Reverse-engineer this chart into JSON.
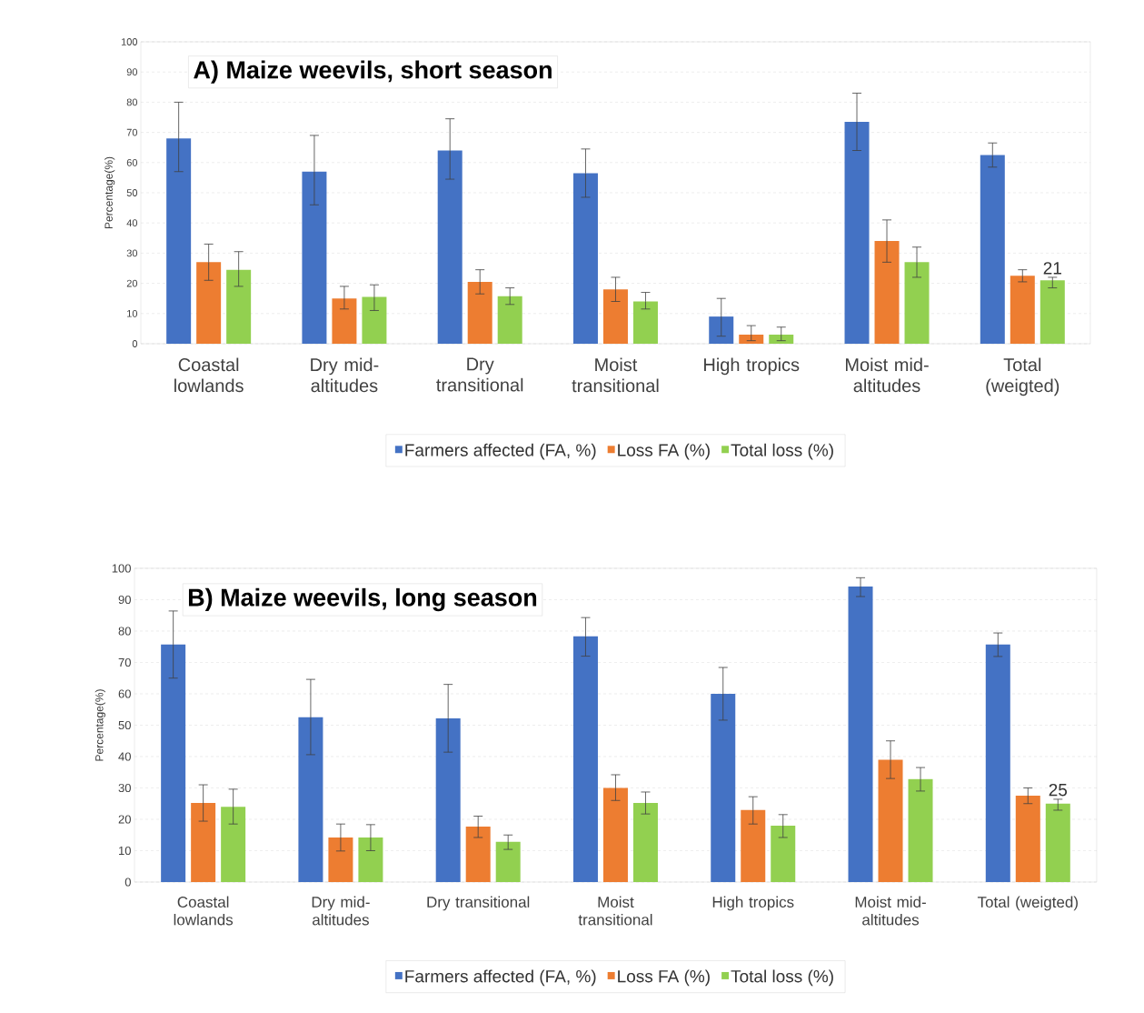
{
  "chart_data": [
    {
      "type": "bar",
      "title": "A) Maize weevils,  short season",
      "ylabel": "Percentage(%)",
      "categories": [
        "Coastal lowlands",
        "Dry mid-altitudes",
        "Dry transitional",
        "Moist transitional",
        "High tropics",
        "Moist mid-altitudes",
        "Total (weigted)"
      ],
      "series": [
        {
          "name": "Farmers affected (FA, %)",
          "color": "#4472c4",
          "values": [
            68,
            57,
            64,
            56.5,
            9,
            73.5,
            62.5
          ],
          "errors": [
            [
              57,
              80
            ],
            [
              46,
              69
            ],
            [
              54.5,
              74.5
            ],
            [
              48.5,
              64.5
            ],
            [
              2.5,
              15
            ],
            [
              64,
              83
            ],
            [
              58.5,
              66.5
            ]
          ]
        },
        {
          "name": "Loss FA (%)",
          "color": "#ed7d31",
          "values": [
            27,
            15,
            20.5,
            18,
            3,
            34,
            22.5
          ],
          "errors": [
            [
              21,
              33
            ],
            [
              11.5,
              19
            ],
            [
              16.5,
              24.5
            ],
            [
              14,
              22
            ],
            [
              1,
              6
            ],
            [
              27,
              41
            ],
            [
              20.5,
              24.5
            ]
          ]
        },
        {
          "name": "Total loss (%)",
          "color": "#92d050",
          "values": [
            24.5,
            15.5,
            15.7,
            14,
            3,
            27,
            21
          ],
          "errors": [
            [
              19,
              30.5
            ],
            [
              11,
              19.5
            ],
            [
              13,
              18.5
            ],
            [
              11.5,
              17
            ],
            [
              1,
              5.5
            ],
            [
              22,
              32
            ],
            [
              18.5,
              22
            ]
          ],
          "value_labels": [
            null,
            null,
            null,
            null,
            null,
            null,
            "21"
          ]
        }
      ],
      "ylim": [
        0,
        100
      ],
      "yticks": [
        0,
        10,
        20,
        30,
        40,
        50,
        60,
        70,
        80,
        90,
        100
      ],
      "grid": "y",
      "legend": "bottom"
    },
    {
      "type": "bar",
      "title": "B) Maize weevils, long season",
      "ylabel": "Percentage(%)",
      "categories": [
        "Coastal lowlands",
        "Dry mid-altitudes",
        "Dry transitional",
        "Moist transitional",
        "High tropics",
        "Moist mid-altitudes",
        "Total (weigted)"
      ],
      "series": [
        {
          "name": "Farmers affected (FA, %)",
          "color": "#4472c4",
          "values": [
            75.7,
            52.5,
            52.2,
            78.3,
            60,
            94.2,
            75.7
          ],
          "errors": [
            [
              65,
              86.4
            ],
            [
              40.6,
              64.6
            ],
            [
              41.4,
              63
            ],
            [
              72,
              84.3
            ],
            [
              51.6,
              68.4
            ],
            [
              91,
              97
            ],
            [
              71.9,
              79.4
            ]
          ]
        },
        {
          "name": "Loss FA (%)",
          "color": "#ed7d31",
          "values": [
            25.2,
            14.2,
            17.7,
            30,
            23,
            39,
            27.5
          ],
          "errors": [
            [
              19.4,
              31
            ],
            [
              9.9,
              18.5
            ],
            [
              14.2,
              21
            ],
            [
              26,
              34.2
            ],
            [
              18.5,
              27.2
            ],
            [
              33,
              45
            ],
            [
              25,
              30
            ]
          ]
        },
        {
          "name": "Total loss (%)",
          "color": "#92d050",
          "values": [
            24,
            14.2,
            12.8,
            25.2,
            18,
            32.8,
            25
          ],
          "errors": [
            [
              18.5,
              29.6
            ],
            [
              10,
              18.3
            ],
            [
              10.4,
              15
            ],
            [
              21.7,
              28.7
            ],
            [
              14.2,
              21.5
            ],
            [
              29,
              36.5
            ],
            [
              22.9,
              26.4
            ]
          ],
          "value_labels": [
            null,
            null,
            null,
            null,
            null,
            null,
            "25"
          ]
        }
      ],
      "ylim": [
        0,
        100
      ],
      "yticks": [
        0,
        10,
        20,
        30,
        40,
        50,
        60,
        70,
        80,
        90,
        100
      ],
      "grid": "y",
      "legend": "bottom"
    }
  ]
}
